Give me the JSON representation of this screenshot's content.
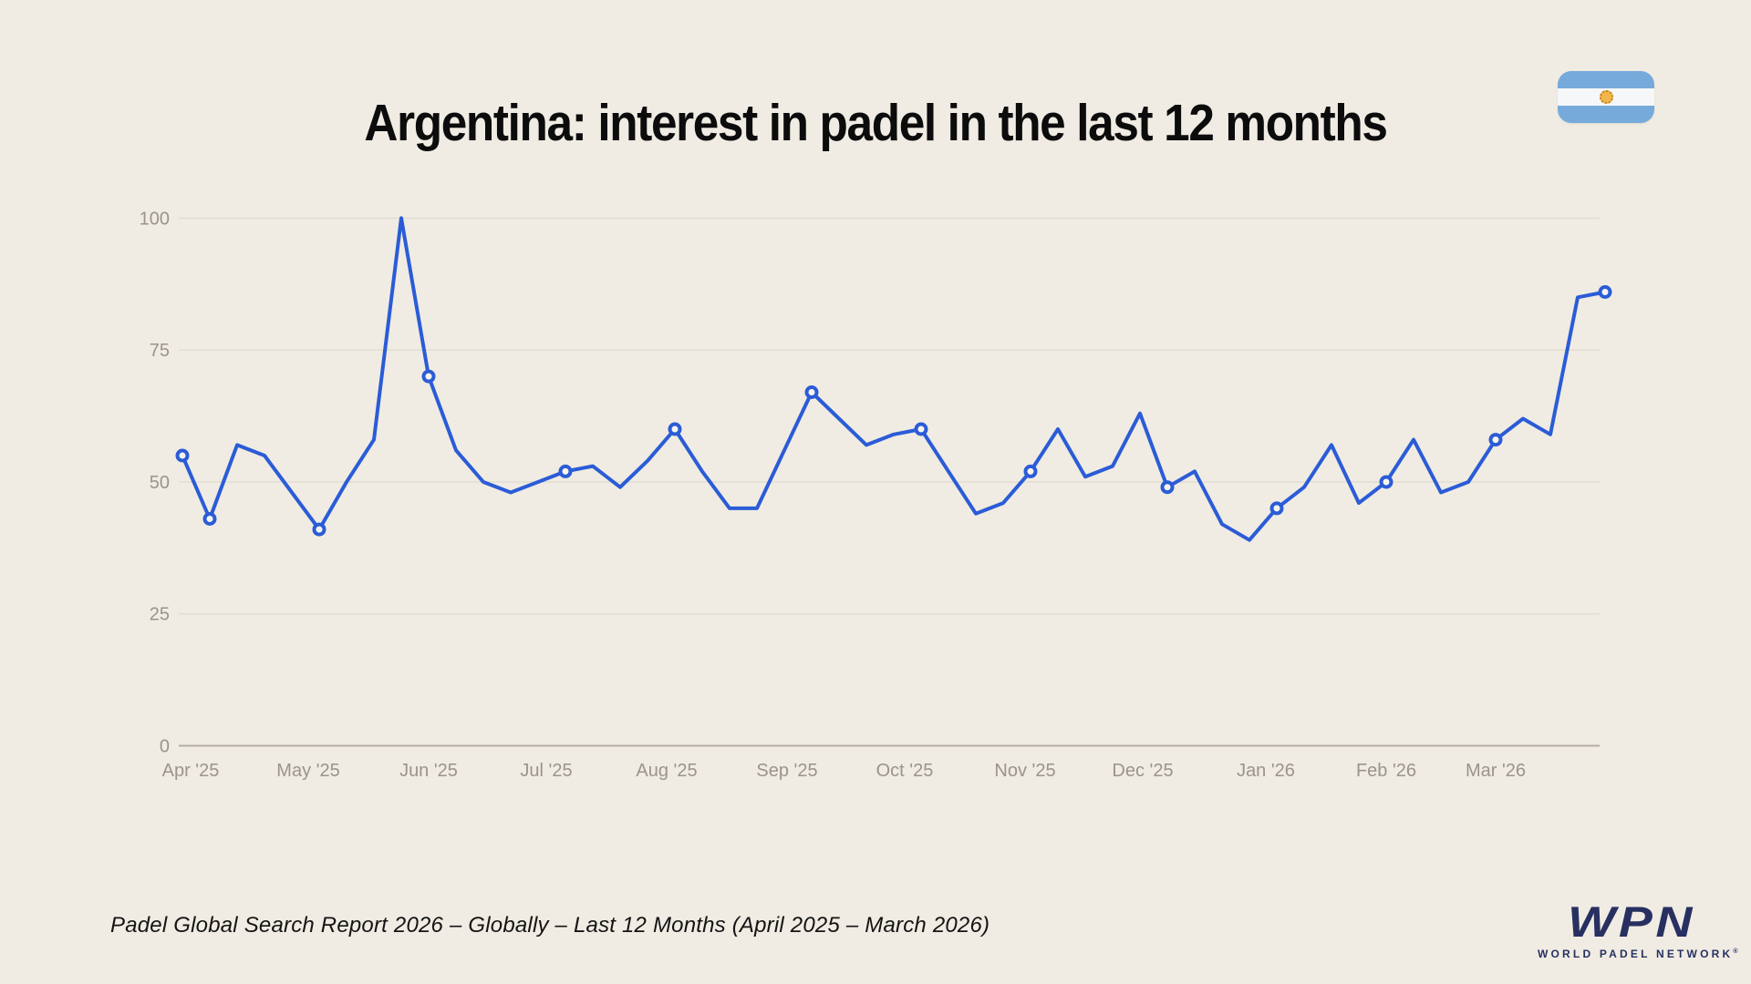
{
  "header": {
    "title": "Argentina: interest in padel in the last 12 months",
    "flag_icon": "argentina-flag"
  },
  "footer": {
    "source": "Padel Global Search Report 2026 – Globally – Last 12 Months (April 2025 – March 2026)"
  },
  "logo": {
    "acronym": "WPN",
    "name": "WORLD PADEL NETWORK",
    "mark": "®"
  },
  "colors": {
    "background": "#f0ece3",
    "line": "#2b5cd7",
    "marker_fill": "#f7f5ee",
    "grid": "#e3ded3",
    "baseline": "#b4aea2",
    "axis_text": "#9a948a",
    "title_text": "#0c0c0c",
    "logo_navy": "#273060",
    "flag_blue": "#75aadb",
    "flag_white": "#f5f7f8",
    "flag_sun": "#f3b64a"
  },
  "chart_data": {
    "type": "line",
    "title": "Argentina: interest in padel in the last 12 months",
    "x_unit": "weekly search interest, Apr 2025 – Mar 2026 (53 weekly points, index 0–52)",
    "values": [
      55,
      43,
      57,
      55,
      48,
      41,
      50,
      58,
      100,
      70,
      56,
      50,
      48,
      50,
      52,
      53,
      49,
      54,
      60,
      52,
      45,
      45,
      56,
      67,
      62,
      57,
      59,
      60,
      52,
      44,
      46,
      52,
      60,
      51,
      53,
      63,
      49,
      52,
      42,
      39,
      45,
      49,
      57,
      46,
      50,
      58,
      48,
      50,
      58,
      62,
      59,
      85,
      86
    ],
    "marker_week_indices": [
      0,
      1,
      5,
      9,
      14,
      18,
      23,
      27,
      31,
      36,
      40,
      44,
      48,
      52
    ],
    "month_ticks": [
      {
        "label": "Apr '25",
        "week": 0.3
      },
      {
        "label": "May '25",
        "week": 4.6
      },
      {
        "label": "Jun '25",
        "week": 9.0
      },
      {
        "label": "Jul '25",
        "week": 13.3
      },
      {
        "label": "Aug '25",
        "week": 17.7
      },
      {
        "label": "Sep '25",
        "week": 22.1
      },
      {
        "label": "Oct '25",
        "week": 26.4
      },
      {
        "label": "Nov '25",
        "week": 30.8
      },
      {
        "label": "Dec '25",
        "week": 35.1
      },
      {
        "label": "Jan '26",
        "week": 39.6
      },
      {
        "label": "Feb '26",
        "week": 44.0
      },
      {
        "label": "Mar '26",
        "week": 48.0
      }
    ],
    "yticks": [
      0,
      25,
      50,
      75,
      100
    ],
    "ylim": [
      0,
      100
    ],
    "grid": true,
    "legend": false
  }
}
